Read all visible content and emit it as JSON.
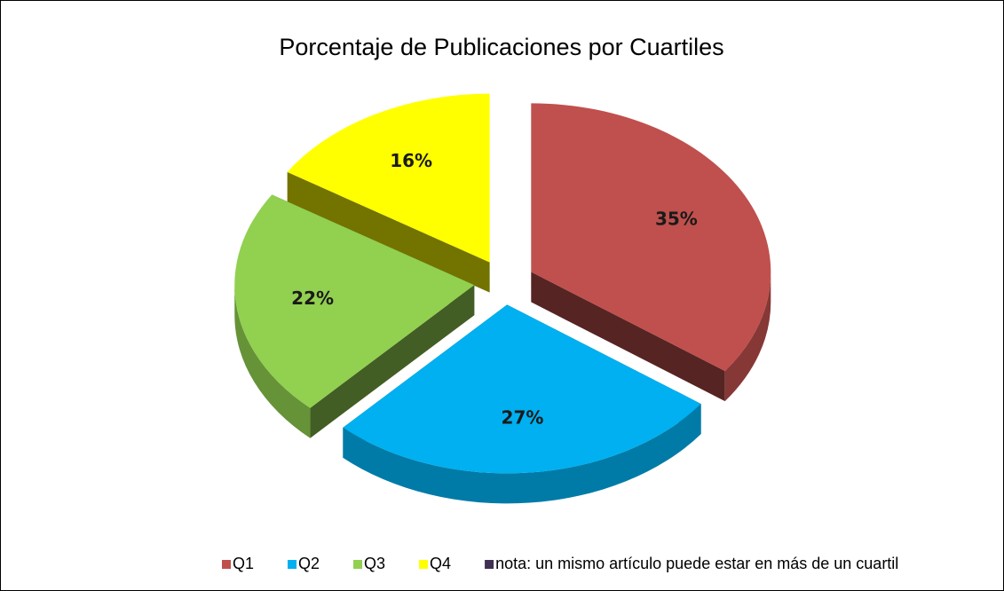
{
  "chart_data": {
    "type": "pie",
    "title": "Porcentaje de Publicaciones por Cuartiles",
    "categories": [
      "Q1",
      "Q2",
      "Q3",
      "Q4"
    ],
    "values": [
      35,
      27,
      22,
      16
    ],
    "value_labels": [
      "35%",
      "27%",
      "22%",
      "16%"
    ],
    "colors": [
      "#c0504d",
      "#00b0f0",
      "#92d050",
      "#ffff00"
    ],
    "legend_note": {
      "text": "nota: un mismo artículo puede estar en más de un cuartil",
      "color": "#403152"
    }
  }
}
